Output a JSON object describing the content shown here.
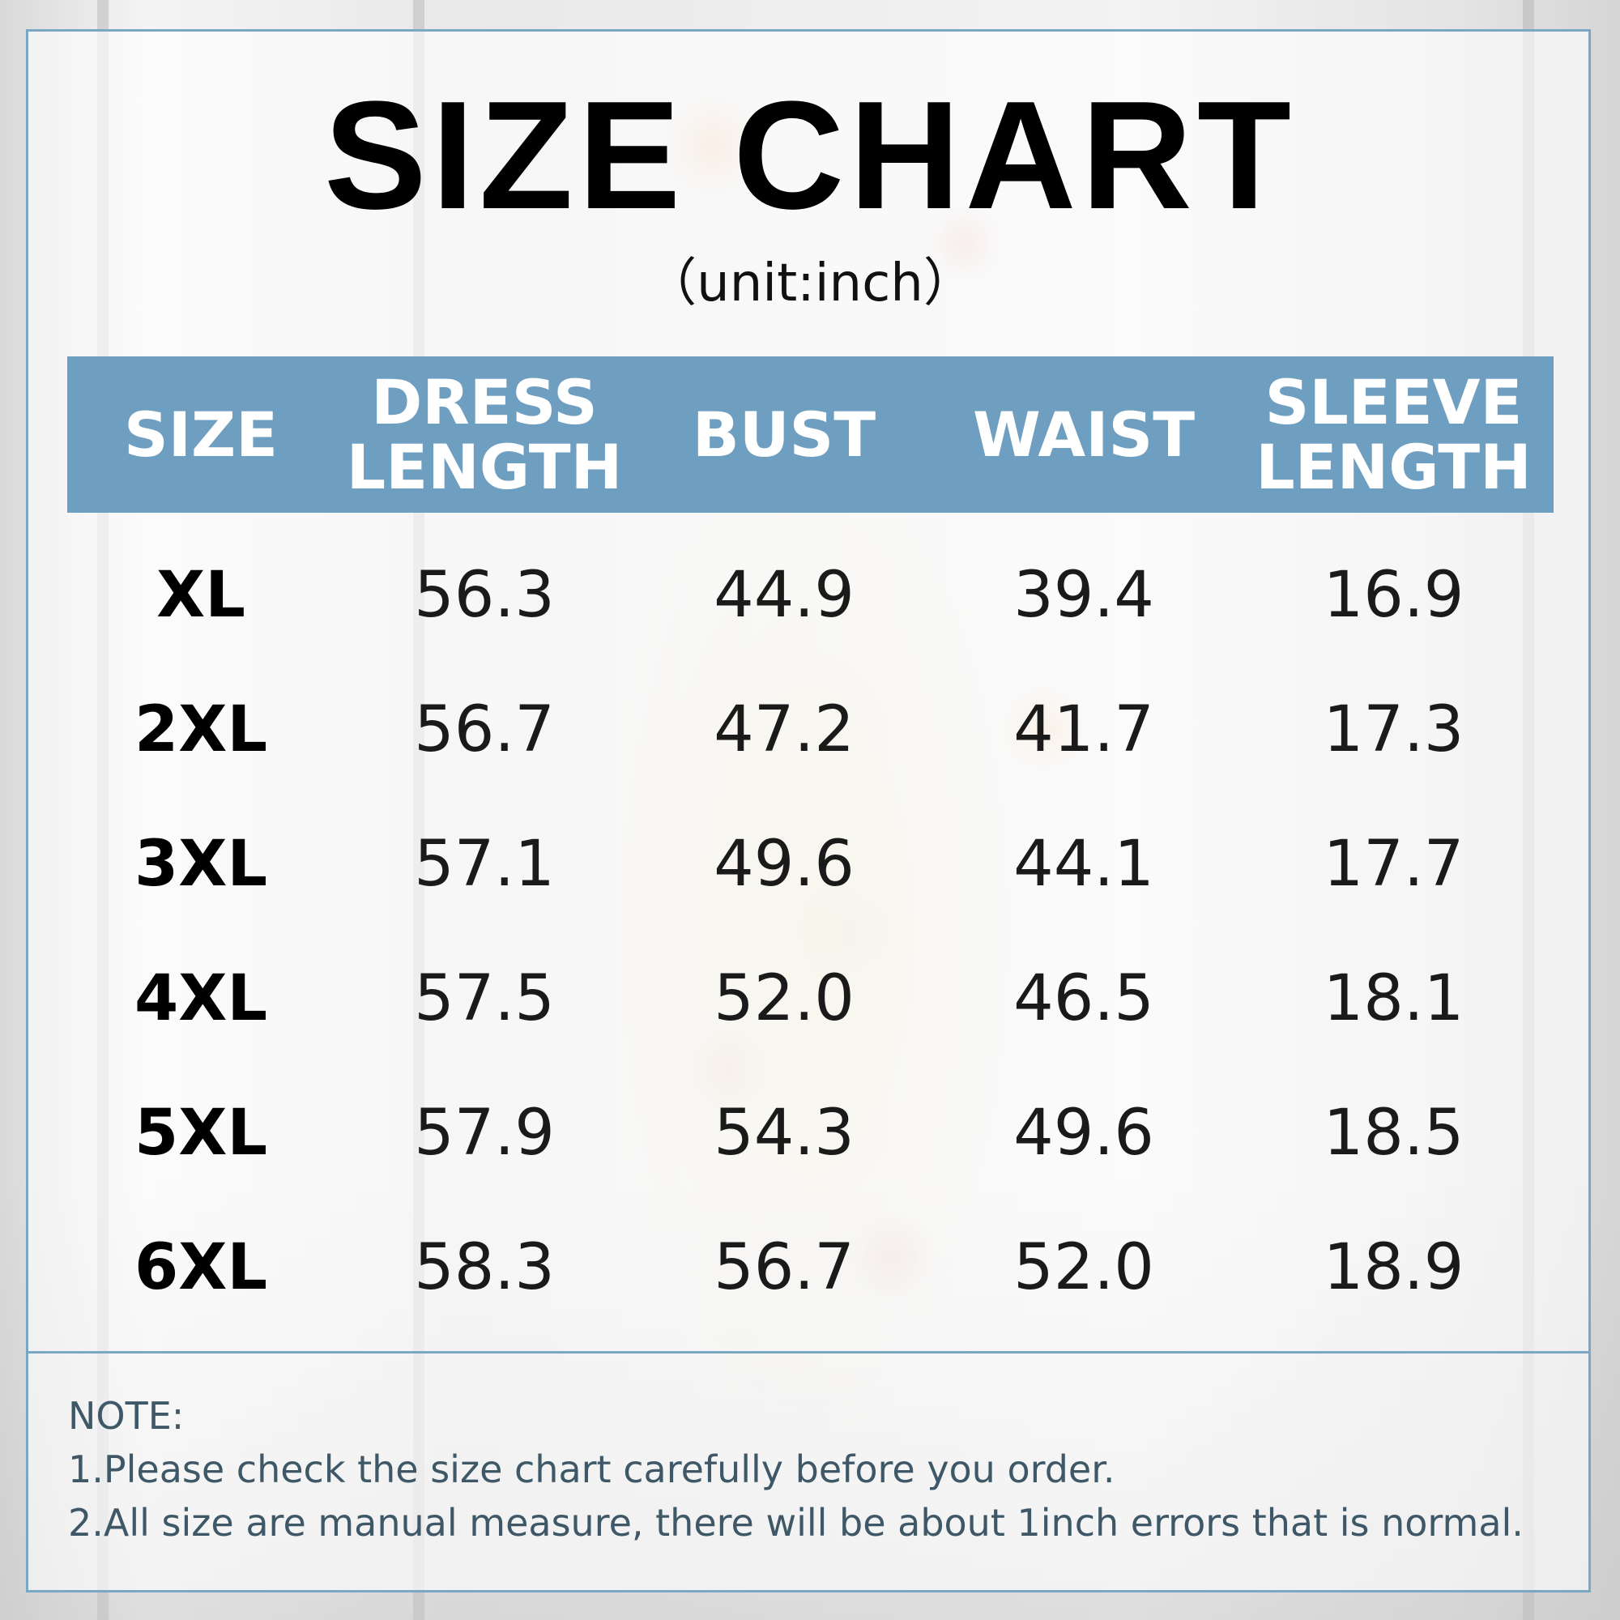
{
  "title": "SIZE CHART",
  "unit": "（unit:inch）",
  "table": {
    "headers": [
      "SIZE",
      "DRESS\nLENGTH",
      "BUST",
      "WAIST",
      "SLEEVE\nLENGTH"
    ],
    "rows": [
      [
        "XL",
        "56.3",
        "44.9",
        "39.4",
        "16.9"
      ],
      [
        "2XL",
        "56.7",
        "47.2",
        "41.7",
        "17.3"
      ],
      [
        "3XL",
        "57.1",
        "49.6",
        "44.1",
        "17.7"
      ],
      [
        "4XL",
        "57.5",
        "52.0",
        "46.5",
        "18.1"
      ],
      [
        "5XL",
        "57.9",
        "54.3",
        "49.6",
        "18.5"
      ],
      [
        "6XL",
        "58.3",
        "56.7",
        "52.0",
        "18.9"
      ]
    ]
  },
  "note": {
    "heading": "NOTE:",
    "lines": [
      "1.Please check the size chart carefully before you order.",
      "2.All size are manual measure, there will be about 1inch errors that is normal."
    ]
  },
  "colors": {
    "header_bg": "#6f9fc0",
    "frame_border": "#7aa7c4",
    "note_text": "#3f5867"
  }
}
